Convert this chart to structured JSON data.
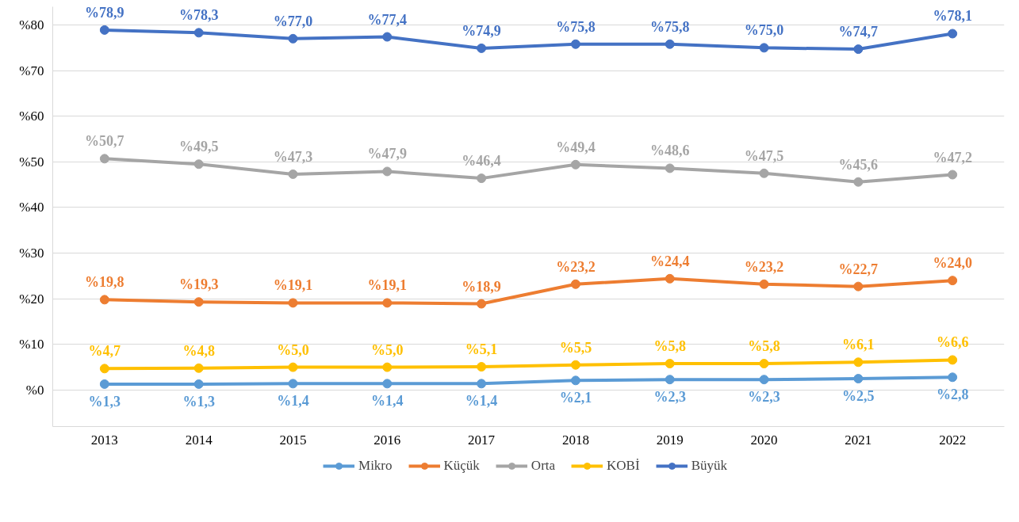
{
  "chart_data": {
    "type": "line",
    "categories": [
      "2013",
      "2014",
      "2015",
      "2016",
      "2017",
      "2018",
      "2019",
      "2020",
      "2021",
      "2022"
    ],
    "series": [
      {
        "name": "Mikro",
        "color": "#5b9bd5",
        "values": [
          1.3,
          1.3,
          1.4,
          1.4,
          1.4,
          2.1,
          2.3,
          2.3,
          2.5,
          2.8
        ],
        "value_labels": [
          "%1,3",
          "%1,3",
          "%1,4",
          "%1,4",
          "%1,4",
          "%2,1",
          "%2,3",
          "%2,3",
          "%2,5",
          "%2,8"
        ]
      },
      {
        "name": "Küçük",
        "color": "#ed7d31",
        "values": [
          19.8,
          19.3,
          19.1,
          19.1,
          18.9,
          23.2,
          24.4,
          23.2,
          22.7,
          24.0
        ],
        "value_labels": [
          "%19,8",
          "%19,3",
          "%19,1",
          "%19,1",
          "%18,9",
          "%23,2",
          "%24,4",
          "%23,2",
          "%22,7",
          "%24,0"
        ]
      },
      {
        "name": "Orta",
        "color": "#a5a5a5",
        "values": [
          50.7,
          49.5,
          47.3,
          47.9,
          46.4,
          49.4,
          48.6,
          47.5,
          45.6,
          47.2
        ],
        "value_labels": [
          "%50,7",
          "%49,5",
          "%47,3",
          "%47,9",
          "%46,4",
          "%49,4",
          "%48,6",
          "%47,5",
          "%45,6",
          "%47,2"
        ]
      },
      {
        "name": "KOBİ",
        "color": "#ffc000",
        "values": [
          4.7,
          4.8,
          5.0,
          5.0,
          5.1,
          5.5,
          5.8,
          5.8,
          6.1,
          6.6
        ],
        "value_labels": [
          "%4,7",
          "%4,8",
          "%5,0",
          "%5,0",
          "%5,1",
          "%5,5",
          "%5,8",
          "%5,8",
          "%6,1",
          "%6,6"
        ]
      },
      {
        "name": "Büyük",
        "color": "#4472c4",
        "values": [
          78.9,
          78.3,
          77.0,
          77.4,
          74.9,
          75.8,
          75.8,
          75.0,
          74.7,
          78.1
        ],
        "value_labels": [
          "%78,9",
          "%78,3",
          "%77,0",
          "%77,4",
          "%74,9",
          "%75,8",
          "%75,8",
          "%75,0",
          "%74,7",
          "%78,1"
        ]
      }
    ],
    "ylim": [
      -8,
      84
    ],
    "yticks": [
      {
        "value": 0,
        "label": "%0"
      },
      {
        "value": 10,
        "label": "%10"
      },
      {
        "value": 20,
        "label": "%20"
      },
      {
        "value": 30,
        "label": "%30"
      },
      {
        "value": 40,
        "label": "%40"
      },
      {
        "value": 50,
        "label": "%50"
      },
      {
        "value": 60,
        "label": "%60"
      },
      {
        "value": 70,
        "label": "%70"
      },
      {
        "value": 80,
        "label": "%80"
      }
    ],
    "grid": "y",
    "legend": "bottom",
    "marker": "circle",
    "line_style": "solid"
  }
}
